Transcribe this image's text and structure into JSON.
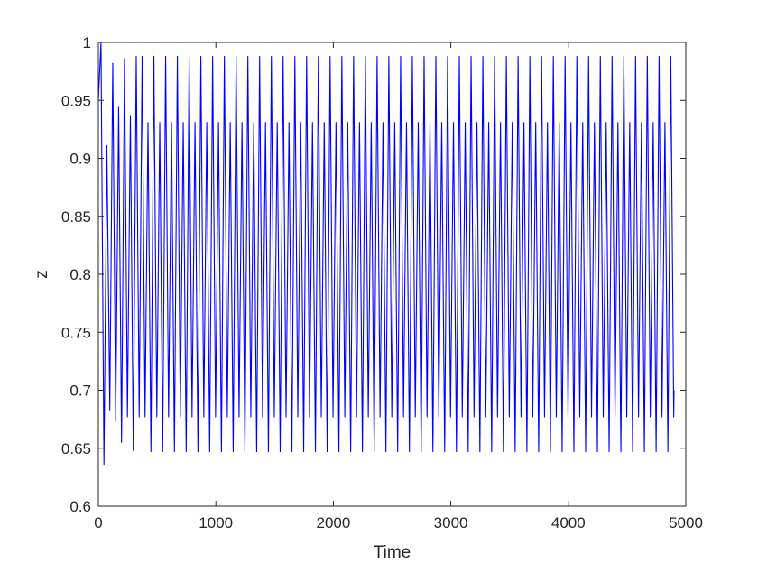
{
  "chart_data": {
    "type": "line",
    "title": "",
    "xlabel": "Time",
    "ylabel": "z",
    "xlim": [
      0,
      5000
    ],
    "ylim": [
      0.6,
      1.0
    ],
    "xticks": [
      0,
      1000,
      2000,
      3000,
      4000,
      5000
    ],
    "yticks": [
      0.6,
      0.65,
      0.7,
      0.75,
      0.8,
      0.85,
      0.9,
      0.95,
      1.0
    ],
    "xtick_labels": [
      "0",
      "1000",
      "2000",
      "3000",
      "4000",
      "5000"
    ],
    "ytick_labels": [
      "0.6",
      "0.65",
      "0.7",
      "0.75",
      "0.8",
      "0.85",
      "0.9",
      "0.95",
      "1"
    ],
    "grid": false,
    "legend": "none",
    "series": [
      {
        "color": "#0000ff",
        "description_values": {
          "x_start": 0,
          "x_end": 4900,
          "approx_period": 50,
          "initial_peaks": [
            1.0,
            0.911,
            0.982,
            0.944,
            0.986,
            0.937,
            0.988
          ],
          "initial_troughs": [
            0.636,
            0.683,
            0.673,
            0.655,
            0.677,
            0.648,
            0.677
          ],
          "steady_peaks": [
            0.988,
            0.931
          ],
          "steady_troughs": [
            0.677,
            0.647
          ],
          "end_value": 0.7
        }
      }
    ]
  }
}
